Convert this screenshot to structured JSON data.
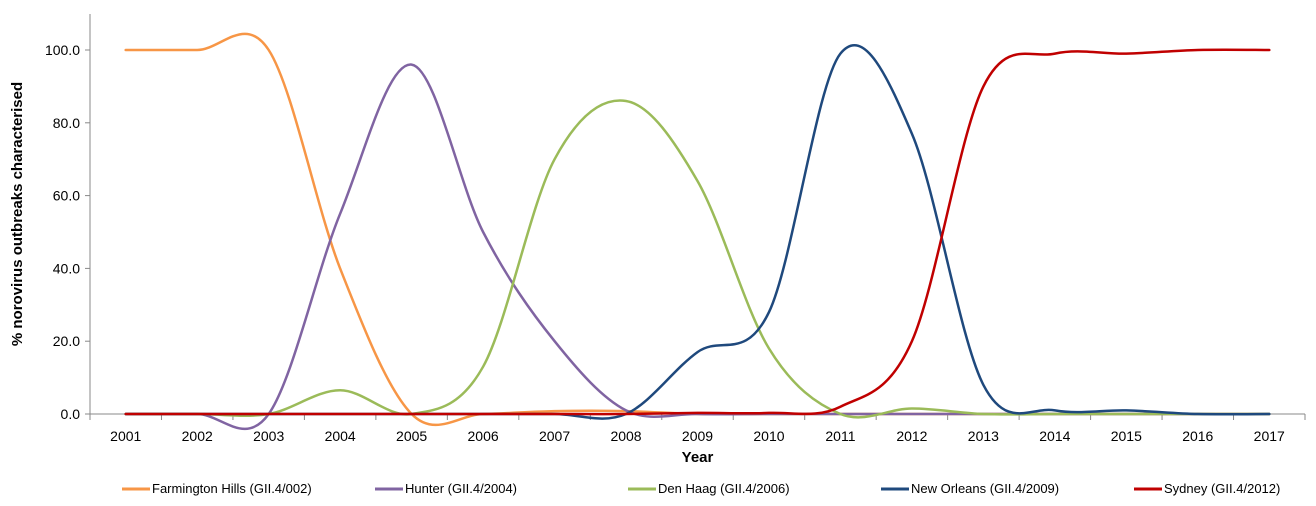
{
  "chart_data": {
    "type": "line",
    "title": "",
    "xlabel": "Year",
    "ylabel": "% norovirus outbreaks characterised",
    "ylim": [
      0,
      100
    ],
    "y_ticks": [
      "0.0",
      "20.0",
      "40.0",
      "60.0",
      "80.0",
      "100.0"
    ],
    "categories": [
      "2001",
      "2002",
      "2003",
      "2004",
      "2005",
      "2006",
      "2007",
      "2008",
      "2009",
      "2010",
      "2011",
      "2012",
      "2013",
      "2014",
      "2015",
      "2016",
      "2017"
    ],
    "grid": false,
    "legend_position": "bottom",
    "smoothed": true,
    "series": [
      {
        "name": "Farmington Hills (GII.4/002)",
        "color": "#F79646",
        "values": [
          100,
          100,
          100,
          40,
          0,
          0,
          0.8,
          0.8,
          0,
          0,
          0,
          0,
          0,
          0,
          0,
          0,
          0
        ]
      },
      {
        "name": "Hunter (GII.4/2004)",
        "color": "#8064A2",
        "values": [
          0,
          0,
          0,
          55,
          96,
          50,
          20,
          1,
          0,
          0,
          0,
          0,
          0,
          0,
          0,
          0,
          0
        ]
      },
      {
        "name": "Den Haag (GII.4/2006)",
        "color": "#9BBB59",
        "values": [
          0,
          0,
          0,
          6.5,
          0,
          13,
          70,
          86,
          64,
          18,
          0,
          1.5,
          0,
          0,
          0,
          0,
          0
        ]
      },
      {
        "name": "New Orleans (GII.4/2009)",
        "color": "#1F497D",
        "values": [
          0,
          0,
          0,
          0,
          0,
          0,
          0,
          0,
          17,
          28,
          99,
          77,
          8,
          1,
          1,
          0,
          0
        ]
      },
      {
        "name": "Sydney (GII.4/2012)",
        "color": "#C00000",
        "values": [
          0,
          0,
          0,
          0,
          0,
          0,
          0,
          0,
          0.3,
          0.3,
          2,
          20,
          90,
          99,
          99,
          100,
          100
        ]
      }
    ]
  }
}
